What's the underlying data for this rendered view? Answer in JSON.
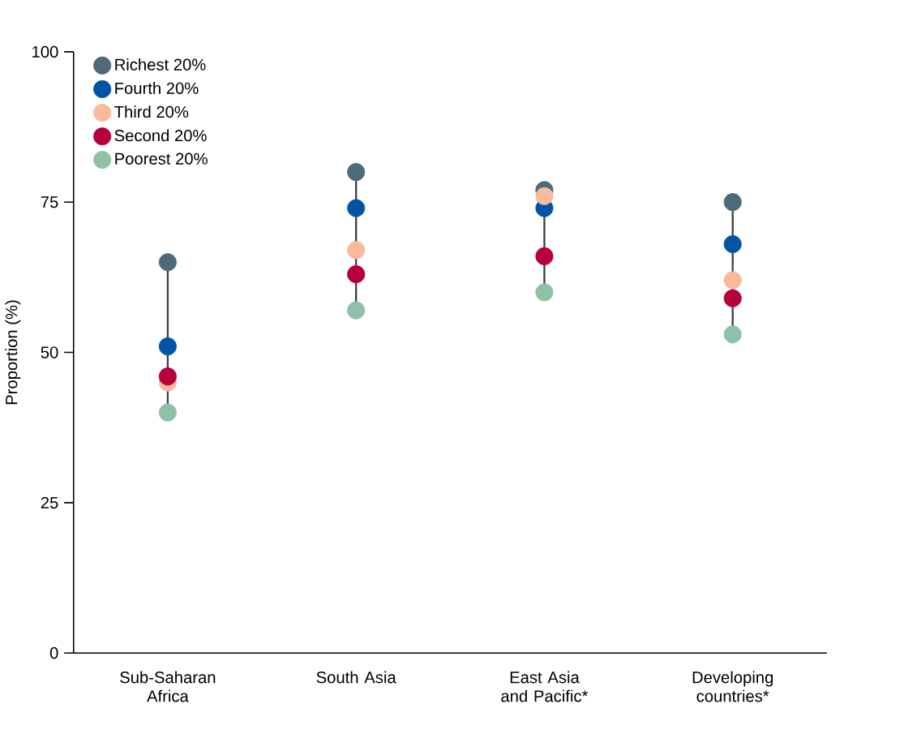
{
  "chart_data": {
    "type": "scatter",
    "ylabel": "Proportion (%)",
    "categories": [
      "Sub-Saharan Africa",
      "South Asia",
      "East Asia and Pacific*",
      "Developing countries*"
    ],
    "ylim": [
      0,
      100
    ],
    "yticks": [
      0,
      25,
      50,
      75,
      100
    ],
    "legend": "top left",
    "grid": false,
    "series": [
      {
        "name": "Richest 20%",
        "color": "#4d6a78",
        "values": [
          65,
          80,
          77,
          75
        ]
      },
      {
        "name": "Fourth 20%",
        "color": "#0054a6",
        "values": [
          51,
          74,
          74,
          68
        ]
      },
      {
        "name": "Third 20%",
        "color": "#f9b99b",
        "values": [
          45,
          67,
          76,
          62
        ]
      },
      {
        "name": "Second 20%",
        "color": "#b5003b",
        "values": [
          46,
          63,
          66,
          59
        ]
      },
      {
        "name": "Poorest 20%",
        "color": "#8fc1a9",
        "values": [
          40,
          57,
          60,
          53
        ]
      }
    ]
  }
}
